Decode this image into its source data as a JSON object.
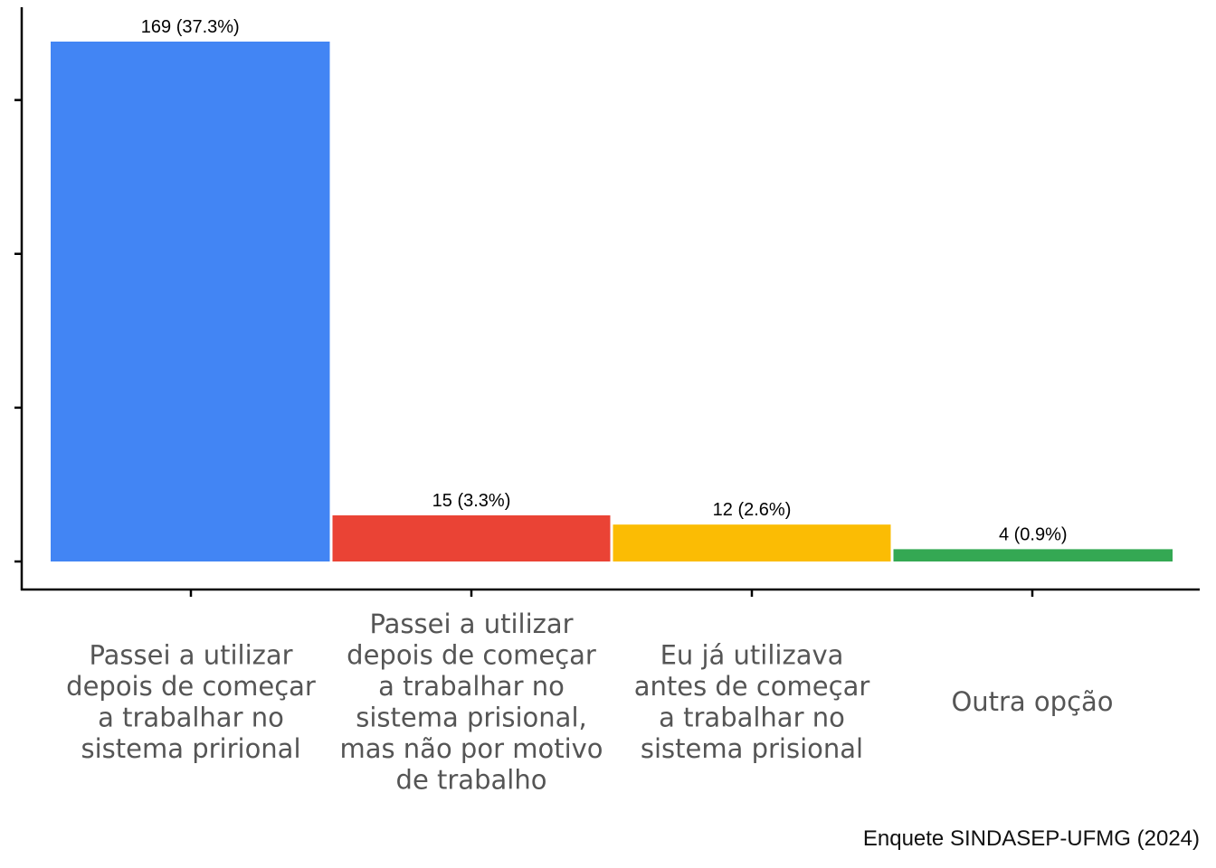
{
  "chart_data": {
    "type": "bar",
    "categories": [
      [
        "Passei a utilizar",
        "depois de começar",
        "a trabalhar no",
        "sistema prirional"
      ],
      [
        "Passei a utilizar",
        "depois de começar",
        "a trabalhar no",
        "sistema prisional,",
        "mas não por motivo",
        "de trabalho"
      ],
      [
        "Eu já utilizava",
        "antes de começar",
        "a trabalhar no",
        "sistema prisional"
      ],
      [
        "Outra opção"
      ]
    ],
    "values": [
      169,
      15,
      12,
      4
    ],
    "data_labels": [
      "169 (37.3%)",
      "15 (3.3%)",
      "12 (2.6%)",
      "4 (0.9%)"
    ],
    "colors": [
      "#4285F4",
      "#EA4335",
      "#FBBC04",
      "#34A853"
    ],
    "ylim": [
      0,
      180
    ],
    "grid": false,
    "legend": "none",
    "xlabel": "",
    "ylabel": ""
  },
  "caption": "Enquete SINDASEP-UFMG (2024)"
}
